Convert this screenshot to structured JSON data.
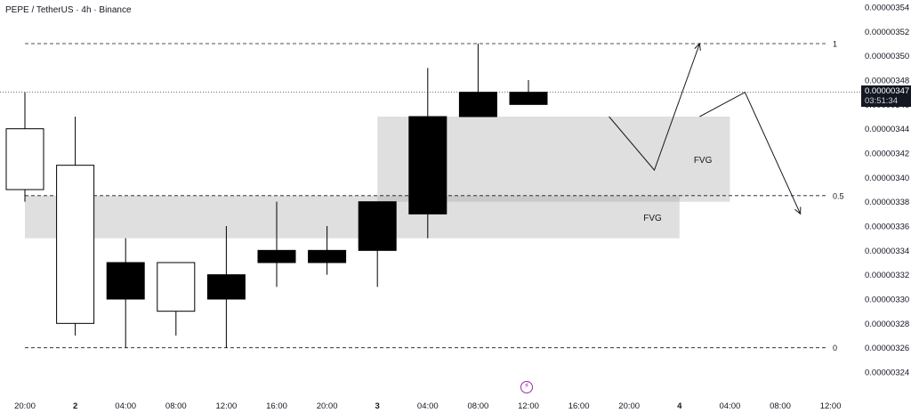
{
  "header": {
    "title": "PEPE / TetherUS · 4h · Binance"
  },
  "current_price": {
    "value": "0.00000347",
    "countdown": "03:51:34"
  },
  "colors": {
    "bull_candle": "#ffffff",
    "bear_candle": "#000000",
    "fvg_zone": "#d9d9d9",
    "fvg_overlap": "#bdbdbd",
    "line": "#131722",
    "axis_text": "#131722",
    "event_icon": "#9c27b0"
  },
  "icons": {
    "event": "lightning-bolt-icon"
  },
  "chart_data": {
    "type": "candlestick",
    "title": "PEPE / TetherUS · 4h · Binance",
    "ylim": [
      3.235e-06,
      3.545e-06
    ],
    "y_ticks": [
      "0.00000354",
      "0.00000352",
      "0.00000350",
      "0.00000348",
      "0.00000346",
      "0.00000344",
      "0.00000342",
      "0.00000340",
      "0.00000338",
      "0.00000336",
      "0.00000334",
      "0.00000332",
      "0.00000330",
      "0.00000328",
      "0.00000326",
      "0.00000324"
    ],
    "y_tick_values": [
      3.54e-06,
      3.52e-06,
      3.5e-06,
      3.48e-06,
      3.46e-06,
      3.44e-06,
      3.42e-06,
      3.4e-06,
      3.38e-06,
      3.36e-06,
      3.34e-06,
      3.32e-06,
      3.3e-06,
      3.28e-06,
      3.26e-06,
      3.24e-06
    ],
    "x_ticks": [
      "20:00",
      "2",
      "04:00",
      "08:00",
      "12:00",
      "16:00",
      "20:00",
      "3",
      "04:00",
      "08:00",
      "12:00",
      "16:00",
      "20:00",
      "4",
      "04:00",
      "08:00",
      "12:00"
    ],
    "bold_x_ticks": [
      "2",
      "3",
      "4"
    ],
    "candles": [
      {
        "time": "20:00",
        "open": 3.39e-06,
        "high": 3.47e-06,
        "low": 3.38e-06,
        "close": 3.44e-06
      },
      {
        "time": "00:00",
        "open": 3.28e-06,
        "high": 3.45e-06,
        "low": 3.27e-06,
        "close": 3.41e-06
      },
      {
        "time": "04:00",
        "open": 3.33e-06,
        "high": 3.35e-06,
        "low": 3.26e-06,
        "close": 3.3e-06
      },
      {
        "time": "08:00",
        "open": 3.29e-06,
        "high": 3.33e-06,
        "low": 3.27e-06,
        "close": 3.33e-06
      },
      {
        "time": "12:00",
        "open": 3.32e-06,
        "high": 3.36e-06,
        "low": 3.26e-06,
        "close": 3.3e-06
      },
      {
        "time": "16:00",
        "open": 3.34e-06,
        "high": 3.38e-06,
        "low": 3.31e-06,
        "close": 3.33e-06
      },
      {
        "time": "20:00",
        "open": 3.34e-06,
        "high": 3.36e-06,
        "low": 3.32e-06,
        "close": 3.33e-06
      },
      {
        "time": "00:00",
        "open": 3.38e-06,
        "high": 3.38e-06,
        "low": 3.31e-06,
        "close": 3.34e-06
      },
      {
        "time": "04:00",
        "open": 3.45e-06,
        "high": 3.49e-06,
        "low": 3.35e-06,
        "close": 3.37e-06
      },
      {
        "time": "08:00",
        "open": 3.47e-06,
        "high": 3.51e-06,
        "low": 3.45e-06,
        "close": 3.45e-06
      },
      {
        "time": "12:00",
        "open": 3.47e-06,
        "high": 3.48e-06,
        "low": 3.46e-06,
        "close": 3.46e-06
      }
    ],
    "fib_levels": [
      {
        "label": "1",
        "price": 3.51e-06
      },
      {
        "label": "0.5",
        "price": 3.385e-06
      },
      {
        "label": "0",
        "price": 3.26e-06
      }
    ],
    "fvg_zones": [
      {
        "label": "FVG",
        "top": 3.385e-06,
        "bottom": 3.35e-06,
        "start_time": "20:00",
        "end_time": "4"
      },
      {
        "label": "FVG",
        "top": 3.45e-06,
        "bottom": 3.38e-06,
        "start_time": "00:00",
        "end_time": "04:00"
      }
    ],
    "projection_paths": [
      {
        "points": [
          [
            11.6,
            3.45e-06
          ],
          [
            12.5,
            3.406e-06
          ],
          [
            13.4,
            3.51e-06
          ]
        ],
        "arrow": true
      },
      {
        "points": [
          [
            13.4,
            3.45e-06
          ],
          [
            14.3,
            3.47e-06
          ],
          [
            15.4,
            3.37e-06
          ]
        ],
        "arrow": true
      }
    ],
    "current_price_line": 3.47e-06,
    "grid": false,
    "legend": "none"
  }
}
